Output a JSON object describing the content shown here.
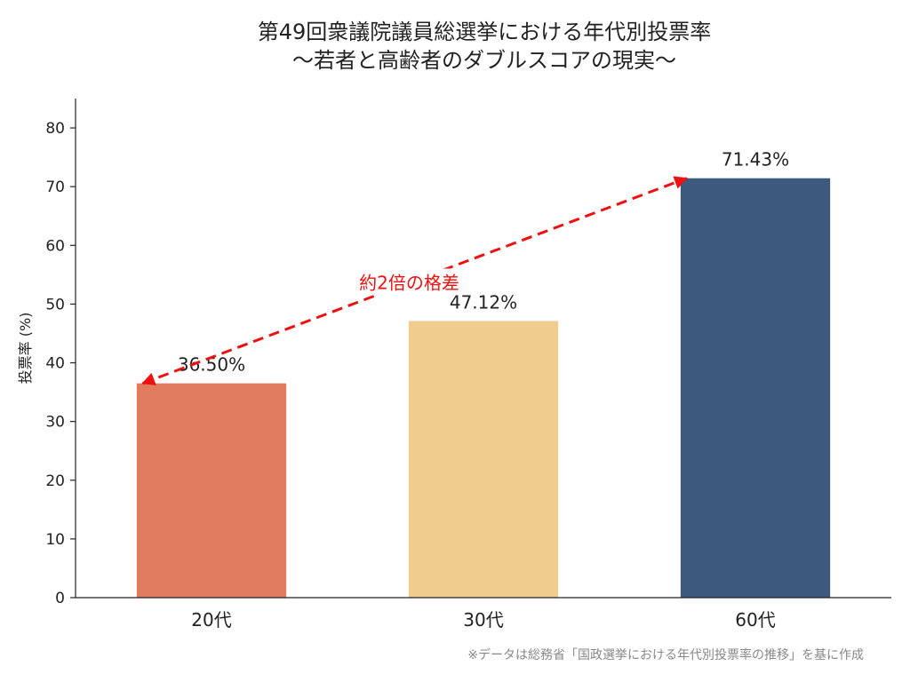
{
  "chart_data": {
    "type": "bar",
    "title": [
      "第49回衆議院議員総選挙における年代別投票率",
      "〜若者と高齢者のダブルスコアの現実〜"
    ],
    "categories": [
      "20代",
      "30代",
      "60代"
    ],
    "values": [
      36.5,
      47.12,
      71.43
    ],
    "value_labels": [
      "36.50%",
      "47.12%",
      "71.43%"
    ],
    "colors": [
      "#e07b5f",
      "#f0cc8e",
      "#3d5a7e"
    ],
    "ylabel": "投票率 (%)",
    "xlabel": "",
    "ylim": [
      0,
      85
    ],
    "yticks": [
      0,
      10,
      20,
      30,
      40,
      50,
      60,
      70,
      80
    ],
    "grid": false,
    "annotation": {
      "text": "約2倍の格差",
      "from_category": "60代",
      "to_category": "20代",
      "color": "#ee1111",
      "style": "dashed double-headed arrow"
    },
    "footnote": "※データは総務省「国政選挙における年代別投票率の推移」を基に作成"
  }
}
